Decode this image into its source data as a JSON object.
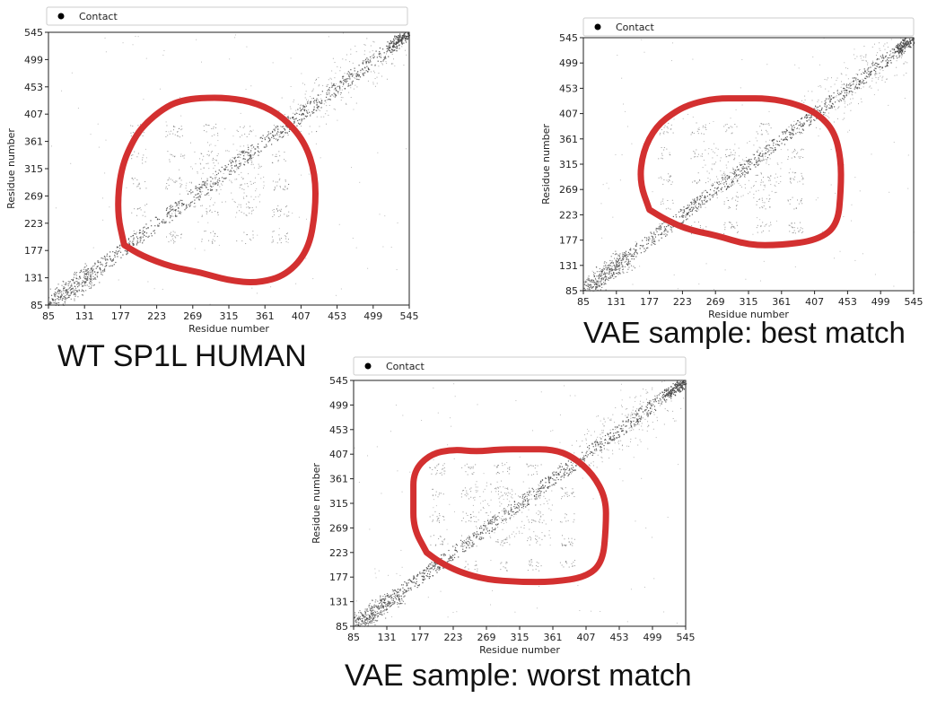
{
  "captions": {
    "wt": "WT SP1L HUMAN",
    "best": "VAE sample: best match",
    "worst": "VAE sample: worst match"
  },
  "colors": {
    "contact": "#444444",
    "highlight": "#d33030",
    "legend_dot": "#000000"
  },
  "chart_data": [
    {
      "id": "wt",
      "type": "scatter",
      "legend": [
        "Contact"
      ],
      "xlabel": "Residue number",
      "ylabel": "Residue number",
      "xlim": [
        85,
        545
      ],
      "ylim": [
        85,
        545
      ],
      "ticks": [
        85,
        131,
        177,
        223,
        269,
        315,
        361,
        407,
        453,
        499,
        545
      ],
      "series": [
        {
          "name": "Contact",
          "description_points": "residue contact pairs"
        }
      ],
      "highlight_region": {
        "x": [
          145,
          410
        ],
        "y": [
          120,
          420
        ]
      }
    },
    {
      "id": "best",
      "type": "scatter",
      "legend": [
        "Contact"
      ],
      "xlabel": "Residue number",
      "ylabel": "Residue number",
      "xlim": [
        85,
        545
      ],
      "ylim": [
        85,
        545
      ],
      "ticks": [
        85,
        131,
        177,
        223,
        269,
        315,
        361,
        407,
        453,
        499,
        545
      ],
      "series": [
        {
          "name": "Contact"
        }
      ],
      "highlight_region": {
        "x": [
          150,
          440
        ],
        "y": [
          140,
          430
        ]
      }
    },
    {
      "id": "worst",
      "type": "scatter",
      "legend": [
        "Contact"
      ],
      "xlabel": "Residue number",
      "ylabel": "Residue number",
      "xlim": [
        85,
        545
      ],
      "ylim": [
        85,
        545
      ],
      "ticks": [
        85,
        131,
        177,
        223,
        269,
        315,
        361,
        407,
        453,
        499,
        545
      ],
      "series": [
        {
          "name": "Contact"
        }
      ],
      "highlight_region": {
        "x": [
          150,
          415
        ],
        "y": [
          160,
          410
        ]
      }
    }
  ]
}
